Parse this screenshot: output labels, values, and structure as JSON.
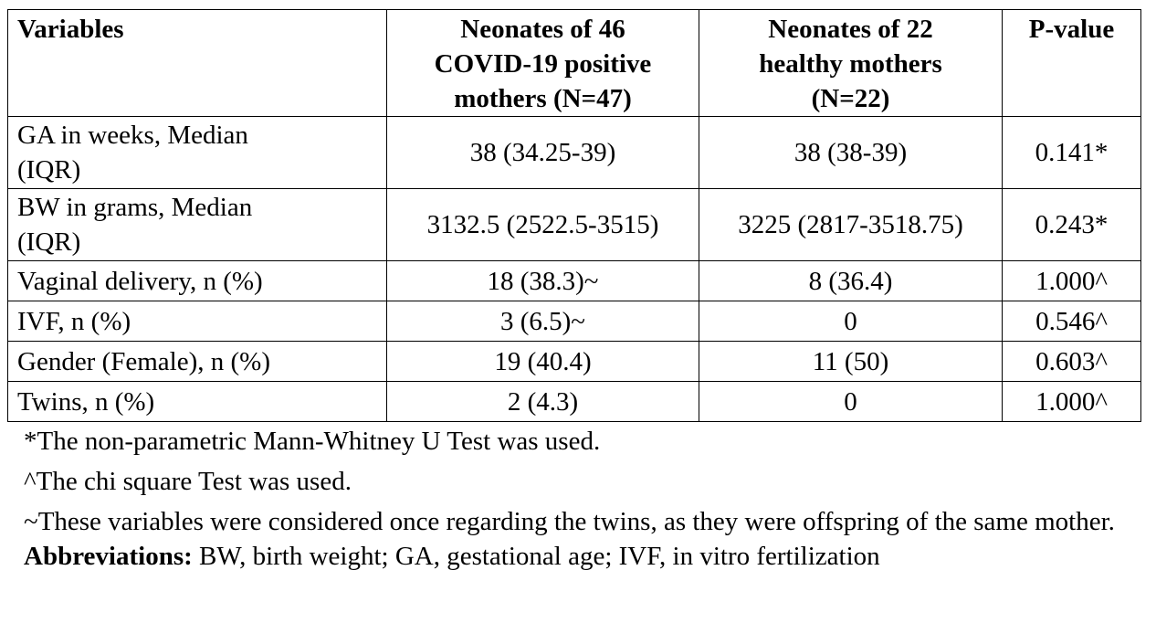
{
  "table": {
    "header": [
      [
        "Variables"
      ],
      [
        "Neonates of 46",
        "COVID-19 positive",
        "mothers (N=47)"
      ],
      [
        "Neonates of 22",
        "healthy mothers",
        "(N=22)"
      ],
      [
        "P-value"
      ]
    ],
    "rows": [
      [
        [
          "GA in weeks, Median",
          "(IQR)"
        ],
        "38 (34.25-39)",
        "38 (38-39)",
        "0.141*"
      ],
      [
        [
          "BW in grams, Median",
          "(IQR)"
        ],
        "3132.5 (2522.5-3515)",
        "3225 (2817-3518.75)",
        "0.243*"
      ],
      [
        [
          "Vaginal delivery, n (%)"
        ],
        "18 (38.3)~",
        "8 (36.4)",
        "1.000^"
      ],
      [
        [
          "IVF, n (%)"
        ],
        "3 (6.5)~",
        "0",
        "0.546^"
      ],
      [
        [
          "Gender (Female), n (%)"
        ],
        "19 (40.4)",
        "11 (50)",
        "0.603^"
      ],
      [
        [
          "Twins, n (%)"
        ],
        "2 (4.3)",
        "0",
        "1.000^"
      ]
    ]
  },
  "footnotes": [
    "*The non-parametric Mann-Whitney U Test was used.",
    "^The chi square Test was used.",
    "~These variables were considered once regarding the twins, as they were offspring of the same mother."
  ],
  "abbreviations": {
    "label": "Abbreviations:",
    "text": "BW, birth weight; GA, gestational age; IVF, in vitro fertilization"
  }
}
